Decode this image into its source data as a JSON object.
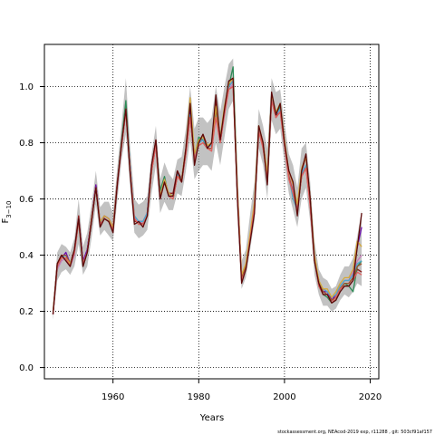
{
  "chart_data": {
    "type": "line",
    "title": "",
    "xlabel": "Years",
    "ylabel": "F",
    "ylabel_subscript": "3−10",
    "xlim": [
      1944,
      2022
    ],
    "ylim": [
      -0.04,
      1.15
    ],
    "xticks": [
      1960,
      1980,
      2000,
      2020
    ],
    "yticks": [
      0.0,
      0.2,
      0.4,
      0.6,
      0.8,
      1.0
    ],
    "ytick_labels": [
      "0.0",
      "0.2",
      "0.4",
      "0.6",
      "0.8",
      "1.0"
    ],
    "grid": true,
    "legend": "none",
    "x": [
      1946,
      1947,
      1948,
      1949,
      1950,
      1951,
      1952,
      1953,
      1954,
      1955,
      1956,
      1957,
      1958,
      1959,
      1960,
      1961,
      1962,
      1963,
      1964,
      1965,
      1966,
      1967,
      1968,
      1969,
      1970,
      1971,
      1972,
      1973,
      1974,
      1975,
      1976,
      1977,
      1978,
      1979,
      1980,
      1981,
      1982,
      1983,
      1984,
      1985,
      1986,
      1987,
      1988,
      1989,
      1990,
      1991,
      1992,
      1993,
      1994,
      1995,
      1996,
      1997,
      1998,
      1999,
      2000,
      2001,
      2002,
      2003,
      2004,
      2005,
      2006,
      2007,
      2008,
      2009,
      2010,
      2011,
      2012,
      2013,
      2014,
      2015,
      2016,
      2017,
      2018
    ],
    "band": {
      "lower": [
        0.17,
        0.31,
        0.34,
        0.35,
        0.33,
        0.36,
        0.44,
        0.33,
        0.36,
        0.46,
        0.58,
        0.47,
        0.49,
        0.47,
        0.45,
        0.59,
        0.74,
        0.83,
        0.64,
        0.48,
        0.46,
        0.47,
        0.49,
        0.62,
        0.72,
        0.55,
        0.59,
        0.56,
        0.56,
        0.62,
        0.61,
        0.7,
        0.81,
        0.67,
        0.7,
        0.72,
        0.72,
        0.7,
        0.8,
        0.72,
        0.82,
        0.92,
        0.95,
        0.55,
        0.28,
        0.32,
        0.42,
        0.52,
        0.78,
        0.72,
        0.6,
        0.88,
        0.83,
        0.85,
        0.73,
        0.62,
        0.56,
        0.5,
        0.6,
        0.64,
        0.52,
        0.33,
        0.26,
        0.22,
        0.22,
        0.2,
        0.21,
        0.24,
        0.26,
        0.25,
        0.27,
        0.3,
        0.29
      ],
      "upper": [
        0.22,
        0.41,
        0.44,
        0.43,
        0.41,
        0.46,
        0.6,
        0.43,
        0.48,
        0.58,
        0.7,
        0.57,
        0.59,
        0.59,
        0.55,
        0.71,
        0.87,
        1.03,
        0.79,
        0.6,
        0.58,
        0.59,
        0.61,
        0.76,
        0.86,
        0.67,
        0.73,
        0.69,
        0.67,
        0.74,
        0.75,
        0.85,
        1.0,
        0.85,
        0.89,
        0.89,
        0.87,
        0.89,
        1.0,
        0.91,
        1.0,
        1.08,
        1.1,
        0.72,
        0.38,
        0.42,
        0.55,
        0.66,
        0.92,
        0.86,
        0.78,
        1.03,
        0.98,
        0.99,
        0.87,
        0.76,
        0.72,
        0.64,
        0.78,
        0.8,
        0.66,
        0.45,
        0.35,
        0.32,
        0.31,
        0.28,
        0.29,
        0.33,
        0.36,
        0.36,
        0.39,
        0.47,
        0.56
      ]
    },
    "series": [
      {
        "color": "#8e1b1b",
        "values": [
          0.19,
          0.37,
          0.4,
          0.4,
          0.37,
          0.42,
          0.54,
          0.37,
          0.42,
          0.53,
          0.65,
          0.51,
          0.54,
          0.53,
          0.5,
          0.66,
          0.8,
          0.93,
          0.7,
          0.52,
          0.52,
          0.51,
          0.55,
          0.72,
          0.81,
          0.61,
          0.66,
          0.62,
          0.62,
          0.7,
          0.67,
          0.78,
          0.93,
          0.74,
          0.8,
          0.83,
          0.79,
          0.79,
          0.95,
          0.81,
          0.92,
          1.01,
          1.03,
          0.62,
          0.31,
          0.36,
          0.46,
          0.56,
          0.86,
          0.8,
          0.66,
          0.97,
          0.89,
          0.93,
          0.8,
          0.7,
          0.65,
          0.55,
          0.7,
          0.75,
          0.6,
          0.39,
          0.31,
          0.27,
          0.27,
          0.24,
          0.25,
          0.28,
          0.3,
          0.3,
          0.32,
          0.35,
          0.34
        ]
      },
      {
        "color": "#2e8b57",
        "values": [
          0.19,
          0.35,
          0.39,
          0.39,
          0.36,
          0.41,
          0.52,
          0.36,
          0.41,
          0.52,
          0.64,
          0.51,
          0.53,
          0.52,
          0.49,
          0.65,
          0.81,
          0.95,
          0.71,
          0.53,
          0.51,
          0.52,
          0.54,
          0.7,
          0.8,
          0.63,
          0.68,
          0.61,
          0.6,
          0.68,
          0.66,
          0.77,
          0.89,
          0.75,
          0.82,
          0.81,
          0.78,
          0.78,
          0.9,
          0.8,
          0.91,
          1.0,
          1.07,
          0.64,
          0.32,
          0.36,
          0.47,
          0.58,
          0.86,
          0.78,
          0.68,
          0.96,
          0.9,
          0.93,
          0.8,
          0.68,
          0.63,
          0.56,
          0.68,
          0.72,
          0.58,
          0.38,
          0.29,
          0.26,
          0.25,
          0.23,
          0.24,
          0.28,
          0.3,
          0.29,
          0.27,
          0.36,
          0.38
        ]
      },
      {
        "color": "#6a0dad",
        "values": [
          0.19,
          0.36,
          0.39,
          0.41,
          0.37,
          0.41,
          0.53,
          0.38,
          0.42,
          0.53,
          0.65,
          0.52,
          0.54,
          0.53,
          0.5,
          0.65,
          0.8,
          0.92,
          0.71,
          0.53,
          0.52,
          0.52,
          0.55,
          0.71,
          0.8,
          0.6,
          0.67,
          0.62,
          0.61,
          0.69,
          0.67,
          0.77,
          0.91,
          0.76,
          0.8,
          0.81,
          0.79,
          0.79,
          0.91,
          0.81,
          0.92,
          1.0,
          1.02,
          0.63,
          0.33,
          0.36,
          0.47,
          0.58,
          0.85,
          0.8,
          0.68,
          0.96,
          0.9,
          0.92,
          0.8,
          0.69,
          0.64,
          0.57,
          0.69,
          0.72,
          0.58,
          0.39,
          0.3,
          0.27,
          0.27,
          0.24,
          0.26,
          0.29,
          0.31,
          0.31,
          0.34,
          0.43,
          0.5
        ]
      },
      {
        "color": "#c77dba",
        "values": [
          0.2,
          0.35,
          0.38,
          0.39,
          0.36,
          0.4,
          0.52,
          0.37,
          0.41,
          0.52,
          0.64,
          0.52,
          0.53,
          0.52,
          0.5,
          0.64,
          0.79,
          0.91,
          0.7,
          0.54,
          0.51,
          0.52,
          0.54,
          0.7,
          0.79,
          0.61,
          0.66,
          0.62,
          0.61,
          0.68,
          0.66,
          0.76,
          0.9,
          0.75,
          0.79,
          0.8,
          0.78,
          0.78,
          0.89,
          0.8,
          0.9,
          0.99,
          1.01,
          0.63,
          0.32,
          0.36,
          0.47,
          0.58,
          0.84,
          0.79,
          0.68,
          0.95,
          0.9,
          0.92,
          0.8,
          0.69,
          0.64,
          0.57,
          0.69,
          0.72,
          0.58,
          0.39,
          0.3,
          0.28,
          0.27,
          0.25,
          0.26,
          0.29,
          0.31,
          0.31,
          0.34,
          0.38,
          0.4
        ]
      },
      {
        "color": "#4ea8c9",
        "values": [
          0.2,
          0.36,
          0.39,
          0.4,
          0.37,
          0.41,
          0.52,
          0.37,
          0.41,
          0.52,
          0.64,
          0.52,
          0.53,
          0.52,
          0.5,
          0.65,
          0.8,
          0.92,
          0.71,
          0.54,
          0.52,
          0.52,
          0.55,
          0.71,
          0.8,
          0.61,
          0.67,
          0.62,
          0.61,
          0.69,
          0.67,
          0.77,
          0.9,
          0.76,
          0.8,
          0.81,
          0.79,
          0.79,
          0.9,
          0.81,
          0.91,
          1.0,
          1.02,
          0.63,
          0.32,
          0.36,
          0.47,
          0.58,
          0.85,
          0.79,
          0.68,
          0.96,
          0.9,
          0.92,
          0.79,
          0.68,
          0.6,
          0.56,
          0.69,
          0.72,
          0.58,
          0.39,
          0.3,
          0.28,
          0.27,
          0.25,
          0.26,
          0.29,
          0.31,
          0.31,
          0.33,
          0.37,
          0.38
        ]
      },
      {
        "color": "#a0522d",
        "values": [
          0.19,
          0.37,
          0.4,
          0.4,
          0.37,
          0.41,
          0.53,
          0.37,
          0.41,
          0.52,
          0.64,
          0.51,
          0.53,
          0.52,
          0.49,
          0.65,
          0.79,
          0.91,
          0.7,
          0.53,
          0.51,
          0.51,
          0.54,
          0.7,
          0.79,
          0.6,
          0.66,
          0.61,
          0.6,
          0.68,
          0.66,
          0.76,
          0.89,
          0.74,
          0.79,
          0.8,
          0.78,
          0.78,
          0.92,
          0.8,
          0.91,
          0.99,
          1.0,
          0.62,
          0.32,
          0.36,
          0.46,
          0.57,
          0.84,
          0.79,
          0.67,
          0.95,
          0.89,
          0.91,
          0.79,
          0.68,
          0.62,
          0.56,
          0.68,
          0.71,
          0.58,
          0.38,
          0.3,
          0.27,
          0.26,
          0.24,
          0.25,
          0.28,
          0.3,
          0.3,
          0.32,
          0.36,
          0.37
        ]
      },
      {
        "color": "#d4a93a",
        "values": [
          0.2,
          0.36,
          0.39,
          0.39,
          0.37,
          0.41,
          0.52,
          0.37,
          0.41,
          0.53,
          0.64,
          0.52,
          0.54,
          0.53,
          0.5,
          0.65,
          0.8,
          0.92,
          0.7,
          0.53,
          0.51,
          0.51,
          0.54,
          0.7,
          0.8,
          0.61,
          0.67,
          0.62,
          0.61,
          0.68,
          0.67,
          0.78,
          0.96,
          0.76,
          0.81,
          0.82,
          0.79,
          0.8,
          0.93,
          0.82,
          0.93,
          1.01,
          1.03,
          0.64,
          0.33,
          0.37,
          0.48,
          0.59,
          0.86,
          0.8,
          0.69,
          0.97,
          0.91,
          0.94,
          0.81,
          0.7,
          0.65,
          0.58,
          0.71,
          0.75,
          0.6,
          0.4,
          0.31,
          0.28,
          0.28,
          0.25,
          0.27,
          0.3,
          0.32,
          0.32,
          0.35,
          0.45,
          0.43
        ]
      },
      {
        "color": "#e06060",
        "values": [
          0.19,
          0.36,
          0.39,
          0.39,
          0.36,
          0.41,
          0.52,
          0.37,
          0.41,
          0.52,
          0.64,
          0.51,
          0.53,
          0.52,
          0.49,
          0.65,
          0.79,
          0.91,
          0.7,
          0.53,
          0.51,
          0.51,
          0.54,
          0.7,
          0.79,
          0.6,
          0.66,
          0.61,
          0.6,
          0.68,
          0.66,
          0.76,
          0.89,
          0.74,
          0.79,
          0.8,
          0.78,
          0.77,
          0.89,
          0.8,
          0.9,
          0.99,
          1.0,
          0.62,
          0.31,
          0.35,
          0.46,
          0.57,
          0.84,
          0.78,
          0.67,
          0.95,
          0.89,
          0.91,
          0.79,
          0.67,
          0.62,
          0.56,
          0.68,
          0.71,
          0.57,
          0.38,
          0.29,
          0.26,
          0.26,
          0.23,
          0.25,
          0.28,
          0.29,
          0.29,
          0.31,
          0.34,
          0.33
        ]
      },
      {
        "color": "#5c0a0a",
        "values": [
          0.19,
          0.37,
          0.4,
          0.38,
          0.36,
          0.42,
          0.53,
          0.36,
          0.41,
          0.52,
          0.64,
          0.5,
          0.53,
          0.52,
          0.48,
          0.65,
          0.8,
          0.92,
          0.69,
          0.51,
          0.52,
          0.5,
          0.54,
          0.72,
          0.81,
          0.6,
          0.66,
          0.61,
          0.61,
          0.7,
          0.66,
          0.78,
          0.94,
          0.72,
          0.8,
          0.83,
          0.78,
          0.8,
          0.97,
          0.81,
          0.92,
          1.02,
          1.03,
          0.6,
          0.3,
          0.35,
          0.45,
          0.55,
          0.86,
          0.8,
          0.65,
          0.98,
          0.9,
          0.94,
          0.8,
          0.7,
          0.66,
          0.54,
          0.7,
          0.76,
          0.6,
          0.38,
          0.3,
          0.26,
          0.26,
          0.23,
          0.24,
          0.27,
          0.29,
          0.29,
          0.31,
          0.43,
          0.55
        ]
      }
    ],
    "credit": "stockassessment.org,  NEAcod-2019  exp,  r11288 ,  git:  503cf91af157"
  }
}
